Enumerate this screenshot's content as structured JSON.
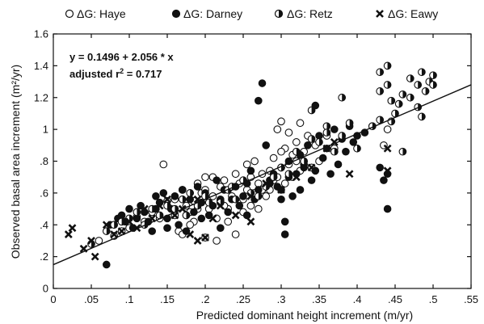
{
  "chart_data": {
    "type": "scatter",
    "title": "",
    "xlabel": "Predicted dominant height increment (m/yr)",
    "ylabel": "Observed basal area increment (m²/yr)",
    "xlim": [
      0,
      0.55
    ],
    "ylim": [
      0,
      1.6
    ],
    "x_ticks": [
      0,
      0.05,
      0.1,
      0.15,
      0.2,
      0.25,
      0.3,
      0.35,
      0.4,
      0.45,
      0.5,
      0.55
    ],
    "x_tick_labels": [
      "0",
      ".05",
      ".1",
      ".15",
      ".2",
      ".25",
      ".3",
      ".35",
      ".4",
      ".45",
      ".5",
      ".55"
    ],
    "y_ticks": [
      0,
      0.2,
      0.4,
      0.6,
      0.8,
      1.0,
      1.2,
      1.4,
      1.6
    ],
    "y_tick_labels": [
      "0",
      ".2",
      ".4",
      ".6",
      ".8",
      "1",
      "1.2",
      "1.4",
      "1.6"
    ],
    "grid": false,
    "legend_position": "top",
    "annotation": {
      "line1": "y = 0.1496 + 2.056 * x",
      "line2_prefix": "adjusted  r",
      "line2_sup": "2",
      "line2_suffix": " = 0.717"
    },
    "regression": {
      "intercept": 0.1496,
      "slope": 2.056
    },
    "series": [
      {
        "name": "ΔG: Haye",
        "marker": "open-circle",
        "points": [
          [
            0.145,
            0.78
          ],
          [
            0.15,
            0.55
          ],
          [
            0.16,
            0.46
          ],
          [
            0.17,
            0.62
          ],
          [
            0.175,
            0.52
          ],
          [
            0.18,
            0.48
          ],
          [
            0.185,
            0.55
          ],
          [
            0.19,
            0.66
          ],
          [
            0.195,
            0.6
          ],
          [
            0.2,
            0.7
          ],
          [
            0.2,
            0.62
          ],
          [
            0.205,
            0.5
          ],
          [
            0.21,
            0.58
          ],
          [
            0.215,
            0.44
          ],
          [
            0.22,
            0.55
          ],
          [
            0.22,
            0.64
          ],
          [
            0.225,
            0.68
          ],
          [
            0.23,
            0.5
          ],
          [
            0.23,
            0.42
          ],
          [
            0.235,
            0.58
          ],
          [
            0.24,
            0.72
          ],
          [
            0.245,
            0.66
          ],
          [
            0.25,
            0.56
          ],
          [
            0.25,
            0.48
          ],
          [
            0.255,
            0.62
          ],
          [
            0.255,
            0.78
          ],
          [
            0.26,
            0.7
          ],
          [
            0.265,
            0.6
          ],
          [
            0.265,
            0.8
          ],
          [
            0.27,
            0.66
          ],
          [
            0.27,
            0.5
          ],
          [
            0.275,
            0.72
          ],
          [
            0.28,
            0.58
          ],
          [
            0.285,
            0.62
          ],
          [
            0.285,
            0.74
          ],
          [
            0.29,
            0.68
          ],
          [
            0.29,
            0.82
          ],
          [
            0.295,
            0.7
          ],
          [
            0.295,
            1.0
          ],
          [
            0.3,
            1.05
          ],
          [
            0.3,
            0.76
          ],
          [
            0.305,
            0.66
          ],
          [
            0.305,
            0.88
          ],
          [
            0.31,
            0.78
          ],
          [
            0.31,
            0.98
          ],
          [
            0.315,
            0.7
          ],
          [
            0.315,
            0.84
          ],
          [
            0.32,
            0.92
          ],
          [
            0.32,
            0.8
          ],
          [
            0.325,
            1.04
          ],
          [
            0.325,
            0.74
          ],
          [
            0.33,
            0.86
          ],
          [
            0.335,
            0.96
          ],
          [
            0.34,
            0.76
          ],
          [
            0.345,
            0.9
          ],
          [
            0.35,
            0.8
          ],
          [
            0.36,
            0.96
          ],
          [
            0.37,
            0.88
          ],
          [
            0.2,
            0.32
          ],
          [
            0.165,
            0.36
          ],
          [
            0.185,
            0.42
          ],
          [
            0.24,
            0.34
          ],
          [
            0.215,
            0.3
          ],
          [
            0.18,
            0.4
          ],
          [
            0.17,
            0.34
          ],
          [
            0.11,
            0.45
          ],
          [
            0.12,
            0.42
          ],
          [
            0.09,
            0.36
          ],
          [
            0.08,
            0.33
          ],
          [
            0.06,
            0.3
          ],
          [
            0.1,
            0.38
          ],
          [
            0.13,
            0.48
          ],
          [
            0.14,
            0.44
          ],
          [
            0.16,
            0.56
          ],
          [
            0.19,
            0.5
          ],
          [
            0.21,
            0.7
          ],
          [
            0.225,
            0.52
          ],
          [
            0.26,
            0.52
          ],
          [
            0.275,
            0.62
          ],
          [
            0.3,
            0.86
          ],
          [
            0.435,
            0.9
          ],
          [
            0.44,
            1.0
          ]
        ]
      },
      {
        "name": "ΔG: Darney",
        "marker": "filled-circle",
        "points": [
          [
            0.07,
            0.15
          ],
          [
            0.075,
            0.4
          ],
          [
            0.085,
            0.44
          ],
          [
            0.09,
            0.46
          ],
          [
            0.095,
            0.42
          ],
          [
            0.1,
            0.5
          ],
          [
            0.105,
            0.38
          ],
          [
            0.11,
            0.44
          ],
          [
            0.115,
            0.52
          ],
          [
            0.12,
            0.48
          ],
          [
            0.125,
            0.42
          ],
          [
            0.13,
            0.36
          ],
          [
            0.135,
            0.5
          ],
          [
            0.14,
            0.54
          ],
          [
            0.145,
            0.6
          ],
          [
            0.15,
            0.44
          ],
          [
            0.155,
            0.5
          ],
          [
            0.16,
            0.58
          ],
          [
            0.165,
            0.4
          ],
          [
            0.17,
            0.62
          ],
          [
            0.175,
            0.46
          ],
          [
            0.18,
            0.56
          ],
          [
            0.185,
            0.48
          ],
          [
            0.19,
            0.64
          ],
          [
            0.195,
            0.54
          ],
          [
            0.2,
            0.6
          ],
          [
            0.205,
            0.46
          ],
          [
            0.21,
            0.52
          ],
          [
            0.215,
            0.68
          ],
          [
            0.22,
            0.56
          ],
          [
            0.225,
            0.62
          ],
          [
            0.23,
            0.48
          ],
          [
            0.235,
            0.56
          ],
          [
            0.24,
            0.64
          ],
          [
            0.245,
            0.52
          ],
          [
            0.25,
            0.58
          ],
          [
            0.255,
            0.46
          ],
          [
            0.26,
            0.74
          ],
          [
            0.265,
            0.56
          ],
          [
            0.27,
            0.62
          ],
          [
            0.275,
            1.29
          ],
          [
            0.28,
            0.9
          ],
          [
            0.285,
            0.66
          ],
          [
            0.29,
            0.72
          ],
          [
            0.295,
            0.64
          ],
          [
            0.3,
            0.56
          ],
          [
            0.305,
            0.42
          ],
          [
            0.305,
            0.34
          ],
          [
            0.31,
            0.8
          ],
          [
            0.315,
            0.58
          ],
          [
            0.32,
            0.72
          ],
          [
            0.325,
            0.84
          ],
          [
            0.33,
            0.78
          ],
          [
            0.335,
            0.9
          ],
          [
            0.34,
            0.68
          ],
          [
            0.345,
            0.74
          ],
          [
            0.35,
            0.96
          ],
          [
            0.355,
            0.82
          ],
          [
            0.36,
            0.88
          ],
          [
            0.365,
            0.72
          ],
          [
            0.37,
            1.0
          ],
          [
            0.375,
            0.78
          ],
          [
            0.38,
            0.94
          ],
          [
            0.385,
            0.86
          ],
          [
            0.39,
            1.02
          ],
          [
            0.395,
            0.92
          ],
          [
            0.4,
            0.96
          ],
          [
            0.41,
            0.98
          ],
          [
            0.42,
            1.02
          ],
          [
            0.43,
            0.76
          ],
          [
            0.435,
            0.68
          ],
          [
            0.44,
            0.5
          ],
          [
            0.44,
            0.72
          ],
          [
            0.27,
            1.18
          ],
          [
            0.285,
            0.68
          ],
          [
            0.3,
            0.62
          ],
          [
            0.325,
            0.62
          ],
          [
            0.345,
            1.15
          ],
          [
            0.31,
            0.7
          ],
          [
            0.33,
            0.76
          ],
          [
            0.255,
            0.66
          ],
          [
            0.22,
            0.38
          ],
          [
            0.195,
            0.44
          ],
          [
            0.175,
            0.36
          ],
          [
            0.15,
            0.38
          ],
          [
            0.135,
            0.58
          ]
        ]
      },
      {
        "name": "ΔG: Retz",
        "marker": "half-circle",
        "points": [
          [
            0.05,
            0.28
          ],
          [
            0.07,
            0.36
          ],
          [
            0.08,
            0.4
          ],
          [
            0.09,
            0.42
          ],
          [
            0.1,
            0.44
          ],
          [
            0.11,
            0.48
          ],
          [
            0.12,
            0.4
          ],
          [
            0.13,
            0.5
          ],
          [
            0.14,
            0.46
          ],
          [
            0.15,
            0.52
          ],
          [
            0.16,
            0.5
          ],
          [
            0.17,
            0.56
          ],
          [
            0.18,
            0.6
          ],
          [
            0.2,
            0.58
          ],
          [
            0.22,
            0.54
          ],
          [
            0.23,
            0.62
          ],
          [
            0.24,
            0.56
          ],
          [
            0.25,
            0.68
          ],
          [
            0.26,
            0.6
          ],
          [
            0.28,
            0.64
          ],
          [
            0.3,
            0.76
          ],
          [
            0.31,
            0.72
          ],
          [
            0.32,
            0.86
          ],
          [
            0.33,
            0.8
          ],
          [
            0.34,
            1.12
          ],
          [
            0.35,
            0.92
          ],
          [
            0.36,
            1.02
          ],
          [
            0.37,
            0.86
          ],
          [
            0.38,
            0.96
          ],
          [
            0.39,
            1.04
          ],
          [
            0.4,
            0.88
          ],
          [
            0.42,
            1.02
          ],
          [
            0.43,
            1.06
          ],
          [
            0.43,
            1.36
          ],
          [
            0.43,
            1.24
          ],
          [
            0.44,
            1.4
          ],
          [
            0.44,
            1.28
          ],
          [
            0.445,
            1.18
          ],
          [
            0.45,
            1.1
          ],
          [
            0.455,
            1.16
          ],
          [
            0.46,
            1.22
          ],
          [
            0.47,
            1.32
          ],
          [
            0.47,
            1.2
          ],
          [
            0.48,
            1.28
          ],
          [
            0.48,
            1.14
          ],
          [
            0.485,
            1.36
          ],
          [
            0.485,
            1.08
          ],
          [
            0.49,
            1.24
          ],
          [
            0.495,
            1.3
          ],
          [
            0.5,
            1.34
          ],
          [
            0.5,
            1.28
          ],
          [
            0.38,
            1.2
          ],
          [
            0.36,
            0.98
          ],
          [
            0.34,
            0.94
          ],
          [
            0.29,
            0.7
          ],
          [
            0.27,
            0.58
          ],
          [
            0.205,
            0.54
          ],
          [
            0.19,
            0.52
          ],
          [
            0.445,
            1.05
          ],
          [
            0.46,
            0.86
          ],
          [
            0.235,
            0.64
          ],
          [
            0.175,
            0.46
          ]
        ]
      },
      {
        "name": "ΔG: Eawy",
        "marker": "cross",
        "points": [
          [
            0.02,
            0.34
          ],
          [
            0.025,
            0.38
          ],
          [
            0.04,
            0.25
          ],
          [
            0.05,
            0.3
          ],
          [
            0.055,
            0.2
          ],
          [
            0.07,
            0.4
          ],
          [
            0.08,
            0.34
          ],
          [
            0.09,
            0.36
          ],
          [
            0.1,
            0.42
          ],
          [
            0.11,
            0.38
          ],
          [
            0.12,
            0.5
          ],
          [
            0.13,
            0.44
          ],
          [
            0.14,
            0.52
          ],
          [
            0.15,
            0.56
          ],
          [
            0.16,
            0.46
          ],
          [
            0.17,
            0.5
          ],
          [
            0.18,
            0.34
          ],
          [
            0.19,
            0.3
          ],
          [
            0.2,
            0.32
          ],
          [
            0.22,
            0.52
          ],
          [
            0.24,
            0.46
          ],
          [
            0.26,
            0.42
          ],
          [
            0.28,
            0.66
          ],
          [
            0.3,
            0.62
          ],
          [
            0.32,
            0.7
          ],
          [
            0.34,
            0.76
          ],
          [
            0.36,
            0.88
          ],
          [
            0.37,
            0.92
          ],
          [
            0.39,
            0.72
          ],
          [
            0.44,
            0.74
          ],
          [
            0.44,
            0.88
          ],
          [
            0.26,
            0.58
          ],
          [
            0.21,
            0.44
          ],
          [
            0.19,
            0.56
          ]
        ]
      }
    ]
  }
}
